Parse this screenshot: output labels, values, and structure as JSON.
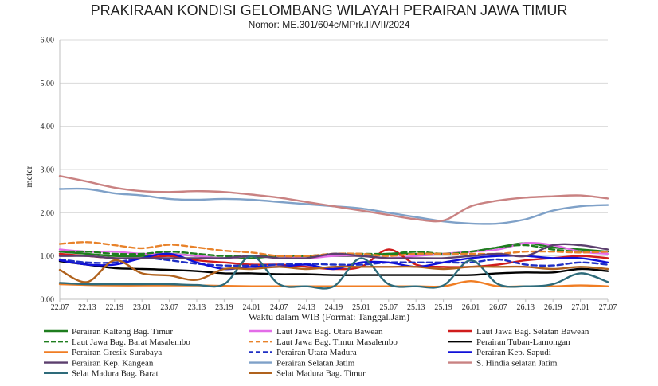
{
  "chart_data": {
    "type": "line",
    "title": "PRAKIRAAN KONDISI GELOMBANG WILAYAH PERAIRAN JAWA TIMUR",
    "subtitle": "Nomor: ME.301/604c/MPrk.II/VII/2024",
    "xlabel": "Waktu dalam WIB (Format: Tanggal.Jam)",
    "ylabel": "meter",
    "ylim": [
      0,
      6
    ],
    "yticks": [
      "0.00",
      "1.00",
      "2.00",
      "3.00",
      "4.00",
      "5.00",
      "6.00"
    ],
    "categories": [
      "22.07",
      "22.13",
      "22.19",
      "23.01",
      "23.07",
      "23.13",
      "23.19",
      "24.01",
      "24.07",
      "24.13",
      "24.19",
      "25.01",
      "25.07",
      "25.13",
      "25.19",
      "26.01",
      "26.07",
      "26.13",
      "26.19",
      "27.01",
      "27.07"
    ],
    "grid": true,
    "legend_position": "bottom",
    "series": [
      {
        "name": "Perairan Kalteng Bag. Timur",
        "color": "#1e7d1e",
        "dash": "solid",
        "values": [
          1.1,
          1.05,
          1.0,
          1.0,
          1.05,
          1.0,
          0.95,
          0.95,
          1.0,
          1.0,
          1.0,
          1.0,
          1.05,
          1.05,
          1.05,
          1.1,
          1.2,
          1.3,
          1.2,
          1.15,
          1.1
        ]
      },
      {
        "name": "Laut Jawa Bag. Utara Bawean",
        "color": "#e36ce8",
        "dash": "solid",
        "values": [
          1.15,
          1.1,
          1.1,
          1.05,
          1.05,
          1.0,
          0.95,
          1.0,
          1.0,
          0.95,
          1.0,
          1.0,
          0.95,
          1.0,
          1.05,
          1.1,
          1.15,
          1.3,
          1.25,
          1.1,
          1.05
        ]
      },
      {
        "name": "Laut Jawa Bag. Selatan Bawean",
        "color": "#d01c1c",
        "dash": "solid",
        "values": [
          1.05,
          1.0,
          0.95,
          0.95,
          1.0,
          0.9,
          0.85,
          0.8,
          0.8,
          0.75,
          0.7,
          0.75,
          1.15,
          0.8,
          0.75,
          0.75,
          0.8,
          0.9,
          0.95,
          1.0,
          0.95
        ]
      },
      {
        "name": "Laut Jawa Bag. Barat Masalembo",
        "color": "#1e7d1e",
        "dash": "dashed",
        "values": [
          1.1,
          1.1,
          1.05,
          1.05,
          1.1,
          1.05,
          1.0,
          1.0,
          1.0,
          1.0,
          1.05,
          1.05,
          1.05,
          1.1,
          1.05,
          1.1,
          1.2,
          1.25,
          1.15,
          1.1,
          1.1
        ]
      },
      {
        "name": "Laut Jawa Bag. Timur Masalembo",
        "color": "#e8822a",
        "dash": "dashed",
        "values": [
          1.28,
          1.32,
          1.25,
          1.18,
          1.26,
          1.2,
          1.12,
          1.08,
          1.0,
          1.0,
          1.05,
          1.05,
          1.0,
          1.05,
          1.05,
          1.05,
          1.05,
          1.1,
          1.1,
          1.08,
          1.1
        ]
      },
      {
        "name": "Perairan Tuban-Lamongan",
        "color": "#000000",
        "dash": "solid",
        "values": [
          0.88,
          0.8,
          0.72,
          0.7,
          0.68,
          0.65,
          0.6,
          0.6,
          0.58,
          0.58,
          0.56,
          0.56,
          0.56,
          0.56,
          0.56,
          0.56,
          0.6,
          0.62,
          0.62,
          0.7,
          0.65
        ]
      },
      {
        "name": "Perairan Gresik-Surabaya",
        "color": "#f07d23",
        "dash": "solid",
        "values": [
          0.35,
          0.33,
          0.32,
          0.32,
          0.32,
          0.32,
          0.31,
          0.3,
          0.3,
          0.3,
          0.3,
          0.3,
          0.3,
          0.3,
          0.3,
          0.42,
          0.3,
          0.3,
          0.3,
          0.32,
          0.3
        ]
      },
      {
        "name": "Perairan Utara Madura",
        "color": "#1f2fc4",
        "dash": "dashed",
        "values": [
          0.92,
          0.85,
          0.85,
          0.95,
          0.9,
          0.82,
          0.78,
          0.78,
          0.8,
          0.82,
          0.8,
          0.8,
          0.85,
          0.85,
          0.85,
          0.85,
          0.92,
          0.8,
          0.78,
          0.85,
          0.8
        ]
      },
      {
        "name": "Perairan Kep. Sapudi",
        "color": "#1010d8",
        "dash": "solid",
        "values": [
          0.9,
          0.8,
          0.8,
          0.95,
          1.05,
          0.85,
          0.7,
          0.75,
          0.75,
          0.8,
          0.7,
          0.85,
          0.85,
          0.75,
          0.85,
          0.95,
          1.0,
          1.0,
          0.95,
          0.95,
          0.85
        ]
      },
      {
        "name": "Perairan Kep. Kangean",
        "color": "#5c3f6e",
        "dash": "solid",
        "values": [
          1.0,
          1.0,
          0.95,
          0.95,
          0.95,
          0.95,
          0.95,
          1.0,
          0.95,
          0.95,
          1.05,
          1.0,
          0.95,
          0.95,
          0.95,
          1.0,
          1.05,
          1.0,
          1.25,
          1.25,
          1.15
        ]
      },
      {
        "name": "Perairan Selatan Jatim",
        "color": "#7fa1c8",
        "dash": "solid",
        "values": [
          2.55,
          2.55,
          2.45,
          2.4,
          2.32,
          2.3,
          2.32,
          2.3,
          2.25,
          2.2,
          2.15,
          2.1,
          2.0,
          1.9,
          1.8,
          1.75,
          1.75,
          1.85,
          2.05,
          2.15,
          2.18
        ]
      },
      {
        "name": "S. Hindia selatan Jatim",
        "color": "#c98282",
        "dash": "solid",
        "values": [
          2.85,
          2.72,
          2.58,
          2.5,
          2.48,
          2.5,
          2.48,
          2.42,
          2.35,
          2.25,
          2.15,
          2.05,
          1.95,
          1.85,
          1.82,
          2.15,
          2.28,
          2.35,
          2.38,
          2.4,
          2.33
        ]
      },
      {
        "name": "Selat Madura Bag. Barat",
        "color": "#2e6b7a",
        "dash": "solid",
        "values": [
          0.38,
          0.35,
          0.35,
          0.35,
          0.35,
          0.33,
          0.35,
          1.0,
          0.35,
          0.3,
          0.3,
          0.95,
          0.35,
          0.3,
          0.32,
          0.9,
          0.35,
          0.3,
          0.35,
          0.6,
          0.4
        ]
      },
      {
        "name": "Selat Madura Bag. Timur",
        "color": "#b0621d",
        "dash": "solid",
        "values": [
          0.68,
          0.4,
          0.9,
          0.6,
          0.55,
          0.45,
          0.7,
          0.7,
          0.75,
          0.7,
          0.75,
          0.75,
          0.75,
          0.75,
          0.7,
          0.75,
          0.75,
          0.75,
          0.7,
          0.75,
          0.7
        ]
      }
    ]
  }
}
